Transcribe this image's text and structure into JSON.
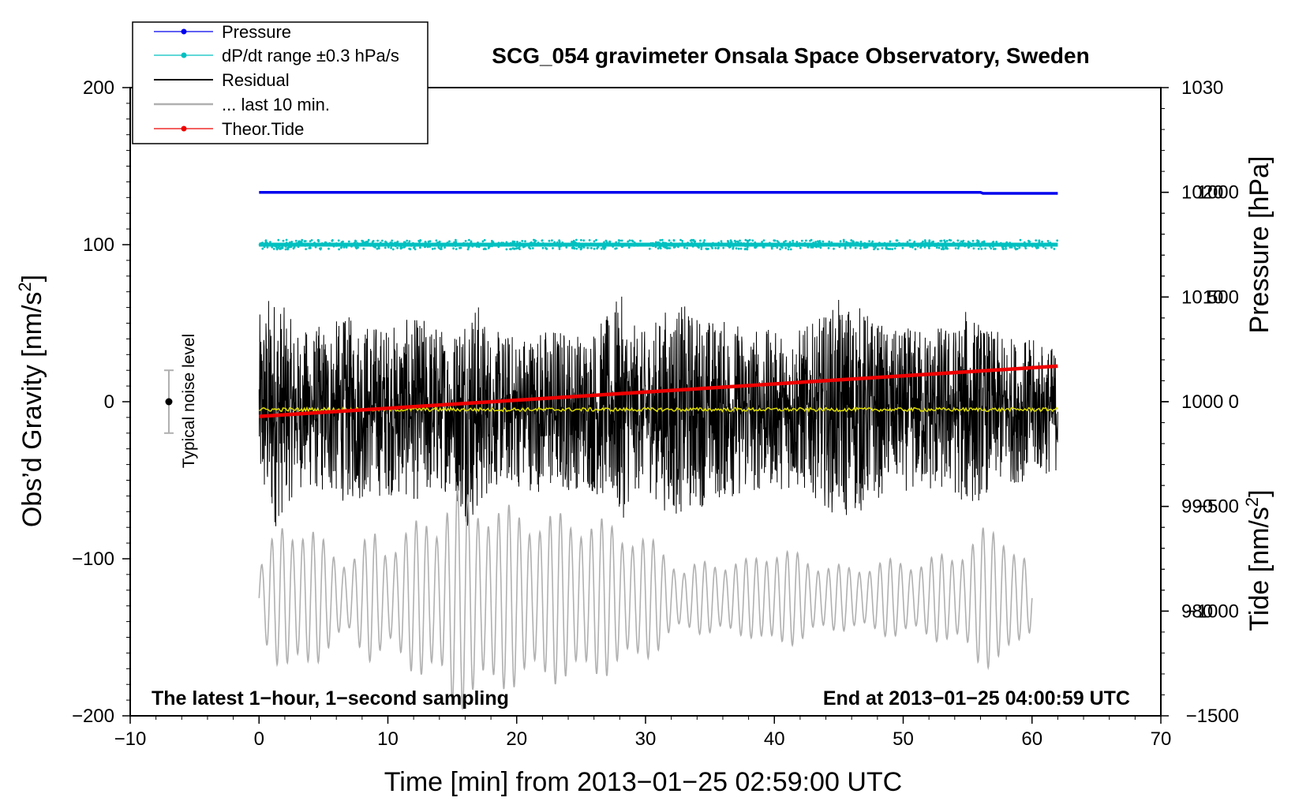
{
  "chart_data": {
    "type": "line",
    "title": "SCG_054 gravimeter Onsala Space Observatory, Sweden",
    "xlabel": "Time [min] from 2013−01−25 02:59:00 UTC",
    "ylabel_left": "Obs’d Gravity [nm/s²]",
    "ylabel_left_text": "Obs’d Gravity [nm/s",
    "ylabel_right_pressure": "Pressure [hPa]",
    "ylabel_right_tide": "Tide [nm/s²]",
    "ylabel_right_tide_text": "Tide [nm/s",
    "superscript_two": "2",
    "xlim": [
      -10,
      70
    ],
    "ylim_left": [
      -200,
      200
    ],
    "x_ticks": [
      -10,
      0,
      10,
      20,
      30,
      40,
      50,
      60,
      70
    ],
    "x_tick_labels": [
      "−10",
      "0",
      "10",
      "20",
      "30",
      "40",
      "50",
      "60",
      "70"
    ],
    "y_left_ticks": [
      200,
      100,
      0,
      -100,
      -200
    ],
    "y_left_tick_labels": [
      "200",
      "100",
      "0",
      "−100",
      "−200"
    ],
    "pressure_ticks": [
      1030,
      1020,
      1010,
      1000,
      990,
      980
    ],
    "pressure_tick_labels": [
      "1030",
      "1020",
      "1010",
      "1000",
      "990",
      "980"
    ],
    "pressure_range_hpa": [
      970,
      1030
    ],
    "tide_ticks": [
      1000,
      500,
      0,
      -500,
      -1000,
      -1500
    ],
    "tide_tick_labels": [
      "1000",
      "500",
      "0",
      "−500",
      "−1000",
      "−1500"
    ],
    "tide_range": [
      -1500,
      1500
    ],
    "legend_placement": "top-left",
    "legend": [
      {
        "name": "Pressure",
        "color": "#0000ee",
        "style": "line-dot"
      },
      {
        "name": "dP/dt range ±0.3 hPa/s",
        "color": "#00c0c0",
        "style": "line-dot"
      },
      {
        "name": "Residual",
        "color": "#000000",
        "style": "line"
      },
      {
        "name": "... last 10 min.",
        "color": "#b0b0b0",
        "style": "line"
      },
      {
        "name": "Theor.Tide",
        "color": "#ee0000",
        "style": "line-dot"
      }
    ],
    "series": [
      {
        "name": "Pressure",
        "axis": "pressure",
        "color": "#0000ee",
        "x": [
          0,
          56,
          56.2,
          62
        ],
        "values": [
          1020,
          1020,
          1019.9,
          1019.9
        ]
      },
      {
        "name": "dP/dt range ±0.3 hPa/s",
        "axis": "left",
        "color": "#00c0c0",
        "x": [
          0,
          62
        ],
        "values": [
          100,
          100
        ],
        "scatter_half_width": 3
      },
      {
        "name": "Residual",
        "axis": "left",
        "color": "#000000",
        "x": [
          0,
          62
        ],
        "mean": -5,
        "amplitude_profile_x": [
          0,
          1,
          3,
          5,
          7,
          10,
          13,
          15,
          16,
          17,
          18,
          20,
          23,
          25,
          27,
          28,
          29,
          30,
          32,
          35,
          38,
          40,
          43,
          45,
          46,
          47,
          49,
          52,
          54,
          55,
          57,
          60,
          62
        ],
        "amplitude_profile_y": [
          60,
          80,
          50,
          55,
          60,
          55,
          60,
          50,
          75,
          70,
          50,
          50,
          55,
          50,
          60,
          75,
          55,
          50,
          70,
          60,
          55,
          50,
          55,
          70,
          70,
          65,
          50,
          55,
          55,
          65,
          50,
          45,
          40
        ]
      },
      {
        "name": "Residual mean",
        "axis": "left",
        "color": "#dddd00",
        "x": [
          0,
          62
        ],
        "values": [
          -5,
          -5
        ]
      },
      {
        "name": "... last 10 min.",
        "axis": "left",
        "color": "#b0b0b0",
        "x": [
          0,
          60
        ],
        "mean": -125,
        "amplitude_profile_x": [
          0,
          2,
          4,
          7,
          9,
          10,
          13,
          14,
          15,
          16,
          19,
          22,
          25,
          27,
          29,
          31,
          33,
          35,
          38,
          40,
          43,
          46,
          48,
          51,
          54,
          56,
          58,
          60
        ],
        "amplitude_profile_y": [
          20,
          55,
          45,
          25,
          45,
          35,
          55,
          55,
          75,
          70,
          60,
          55,
          55,
          50,
          45,
          35,
          20,
          25,
          25,
          35,
          25,
          20,
          25,
          25,
          30,
          45,
          45,
          20
        ],
        "period_min": 0.8
      },
      {
        "name": "Theor.Tide",
        "axis": "tide",
        "color": "#ee0000",
        "x": [
          0,
          62
        ],
        "values": [
          -70,
          170
        ]
      }
    ],
    "noise_indicator": {
      "label": "Typical noise level",
      "x": -7,
      "center": 0,
      "half_range": 20
    },
    "annotations": {
      "bottom_left": "The latest 1−hour, 1−second sampling",
      "bottom_right": "End at 2013−01−25 04:00:59 UTC"
    }
  }
}
